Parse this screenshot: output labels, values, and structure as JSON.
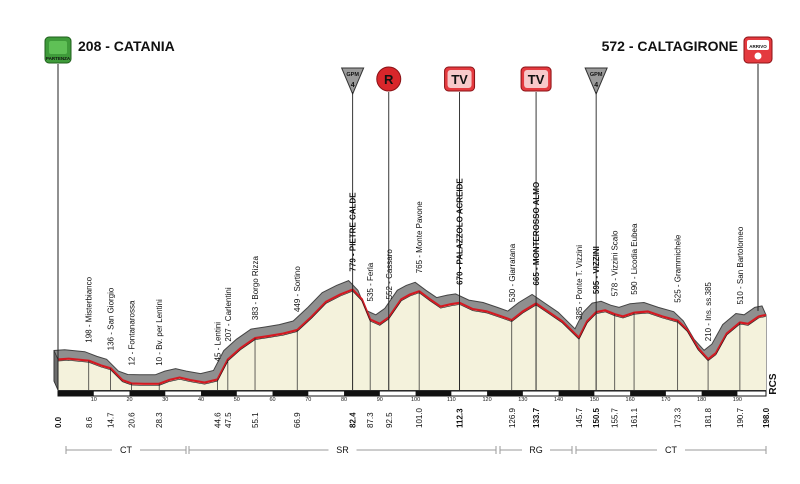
{
  "start": {
    "label": "208 - CATANIA",
    "badge": "PARTENZA"
  },
  "finish": {
    "label": "572 - CALTAGIRONE",
    "badge": "ARRIVO"
  },
  "watermark": "RCS",
  "province_labels": [
    "CT",
    "SR",
    "RG",
    "CT"
  ],
  "markers": [
    {
      "type": "gpm",
      "km": 82.4,
      "label": "GPM",
      "category": "4"
    },
    {
      "type": "sprint",
      "km": 92.5,
      "label": "R"
    },
    {
      "type": "tv",
      "km": 112.3,
      "label": "TV"
    },
    {
      "type": "tv",
      "km": 133.7,
      "label": "TV"
    },
    {
      "type": "gpm",
      "km": 150.5,
      "label": "GPM",
      "category": "4"
    }
  ],
  "chart_data": {
    "type": "area",
    "x_unit": "km",
    "xlim": [
      0,
      198
    ],
    "x_ticks": [
      10,
      20,
      30,
      40,
      50,
      60,
      70,
      80,
      90,
      100,
      110,
      120,
      130,
      140,
      150,
      160,
      170,
      180,
      190
    ],
    "km_labels": [
      {
        "km": 0.0,
        "text": "0.0",
        "bold": true
      },
      {
        "km": 8.6,
        "text": "8.6"
      },
      {
        "km": 14.7,
        "text": "14.7"
      },
      {
        "km": 20.6,
        "text": "20.6"
      },
      {
        "km": 28.3,
        "text": "28.3"
      },
      {
        "km": 44.6,
        "text": "44.6"
      },
      {
        "km": 47.5,
        "text": "47.5"
      },
      {
        "km": 55.1,
        "text": "55.1"
      },
      {
        "km": 66.9,
        "text": "66.9"
      },
      {
        "km": 82.4,
        "text": "82.4",
        "bold": true
      },
      {
        "km": 87.3,
        "text": "87.3"
      },
      {
        "km": 92.5,
        "text": "92.5"
      },
      {
        "km": 101.0,
        "text": "101.0"
      },
      {
        "km": 112.3,
        "text": "112.3",
        "bold": true
      },
      {
        "km": 126.9,
        "text": "126.9"
      },
      {
        "km": 133.7,
        "text": "133.7",
        "bold": true
      },
      {
        "km": 145.7,
        "text": "145.7"
      },
      {
        "km": 150.5,
        "text": "150.5",
        "bold": true
      },
      {
        "km": 155.7,
        "text": "155.7"
      },
      {
        "km": 161.1,
        "text": "161.1"
      },
      {
        "km": 173.3,
        "text": "173.3"
      },
      {
        "km": 181.8,
        "text": "181.8"
      },
      {
        "km": 190.7,
        "text": "190.7"
      },
      {
        "km": 198.0,
        "text": "198.0",
        "bold": true
      }
    ],
    "places": [
      {
        "km": 8.6,
        "text": "198 - Misterbianco"
      },
      {
        "km": 14.7,
        "text": "136 - San Giorgio"
      },
      {
        "km": 20.6,
        "text": "12 - Fontanarossa"
      },
      {
        "km": 28.3,
        "text": "10 - Bv. per Lentini"
      },
      {
        "km": 44.6,
        "text": "45 - Lentini"
      },
      {
        "km": 47.5,
        "text": "207 - Carlentini"
      },
      {
        "km": 55.1,
        "text": "383 - Borgo Rizza"
      },
      {
        "km": 66.9,
        "text": "449 - Sortino"
      },
      {
        "km": 82.4,
        "text": "779 - PIETRE CALDE",
        "bold": true
      },
      {
        "km": 87.3,
        "text": "535 - Ferla"
      },
      {
        "km": 92.5,
        "text": "552 - Cassaro"
      },
      {
        "km": 101.0,
        "text": "765 - Monte Pavone"
      },
      {
        "km": 112.3,
        "text": "670 - PALAZZOLO ACREIDE",
        "bold": true
      },
      {
        "km": 126.9,
        "text": "530 - Giarratana"
      },
      {
        "km": 133.7,
        "text": "665 - MONTEROSSO ALMO",
        "bold": true
      },
      {
        "km": 145.7,
        "text": "385 - Ponte T. Vizzini"
      },
      {
        "km": 150.5,
        "text": "595 - VIZZINI",
        "bold": true
      },
      {
        "km": 155.7,
        "text": "578 - Vizzini Scalo"
      },
      {
        "km": 161.1,
        "text": "590 - Licodia Eubea"
      },
      {
        "km": 173.3,
        "text": "525 - Grammichele"
      },
      {
        "km": 181.8,
        "text": "210 - Ins. ss.385"
      },
      {
        "km": 190.7,
        "text": "510 - San Bartolomeo"
      }
    ],
    "elevation_m": [
      [
        0,
        208
      ],
      [
        3,
        215
      ],
      [
        8.6,
        198
      ],
      [
        12,
        160
      ],
      [
        14.7,
        136
      ],
      [
        18,
        40
      ],
      [
        20.6,
        12
      ],
      [
        24,
        10
      ],
      [
        28.3,
        10
      ],
      [
        31,
        40
      ],
      [
        34,
        60
      ],
      [
        37,
        40
      ],
      [
        41,
        20
      ],
      [
        44.6,
        45
      ],
      [
        47.5,
        207
      ],
      [
        51,
        300
      ],
      [
        55.1,
        383
      ],
      [
        59,
        400
      ],
      [
        63,
        420
      ],
      [
        66.9,
        449
      ],
      [
        71,
        560
      ],
      [
        75,
        680
      ],
      [
        79,
        740
      ],
      [
        82.4,
        779
      ],
      [
        85,
        700
      ],
      [
        87.3,
        535
      ],
      [
        90,
        500
      ],
      [
        92.5,
        552
      ],
      [
        96,
        700
      ],
      [
        98.5,
        740
      ],
      [
        101,
        765
      ],
      [
        104,
        700
      ],
      [
        107,
        640
      ],
      [
        110,
        660
      ],
      [
        112.3,
        670
      ],
      [
        116,
        620
      ],
      [
        120,
        600
      ],
      [
        124,
        560
      ],
      [
        126.9,
        530
      ],
      [
        130,
        600
      ],
      [
        133.7,
        665
      ],
      [
        137,
        600
      ],
      [
        141,
        520
      ],
      [
        145.7,
        385
      ],
      [
        148,
        520
      ],
      [
        150.5,
        595
      ],
      [
        153,
        610
      ],
      [
        155.7,
        578
      ],
      [
        158,
        560
      ],
      [
        161.1,
        590
      ],
      [
        165,
        600
      ],
      [
        169,
        560
      ],
      [
        173.3,
        525
      ],
      [
        176,
        450
      ],
      [
        179,
        300
      ],
      [
        181.8,
        210
      ],
      [
        184,
        260
      ],
      [
        187,
        420
      ],
      [
        190.7,
        510
      ],
      [
        193,
        500
      ],
      [
        196,
        560
      ],
      [
        198,
        572
      ]
    ]
  }
}
